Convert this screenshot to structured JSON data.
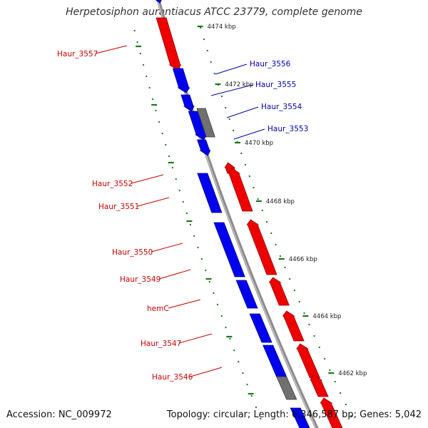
{
  "title": "Herpetosiphon aurantiacus ATCC 23779, complete genome",
  "footer": {
    "accession": "Accession: NC_009972",
    "summary": "Topology: circular; Length: 6,346,587 bp; Genes: 5,042"
  },
  "colors": {
    "forward_gene": "#ee0000",
    "reverse_gene": "#0000ee",
    "other_feature": "#707070",
    "backbone": "#8c8c8c",
    "ruler_ticks": "#1a7a1a",
    "forward_label": "#cc0000",
    "reverse_label": "#0000aa"
  },
  "ruler": {
    "unit": "kbp",
    "marks": [
      "4474 kbp",
      "4472 kbp",
      "4470 kbp",
      "4468 kbp",
      "4466 kbp",
      "4464 kbp",
      "4462 kbp"
    ]
  },
  "gene_labels": [
    {
      "name": "Haur_3557",
      "strand": "forward"
    },
    {
      "name": "Haur_3556",
      "strand": "reverse"
    },
    {
      "name": "Haur_3555",
      "strand": "reverse"
    },
    {
      "name": "Haur_3554",
      "strand": "reverse"
    },
    {
      "name": "Haur_3553",
      "strand": "reverse"
    },
    {
      "name": "Haur_3552",
      "strand": "forward"
    },
    {
      "name": "Haur_3551",
      "strand": "forward"
    },
    {
      "name": "Haur_3550",
      "strand": "forward"
    },
    {
      "name": "Haur_3549",
      "strand": "forward"
    },
    {
      "name": "hemC",
      "strand": "forward"
    },
    {
      "name": "Haur_3547",
      "strand": "forward"
    },
    {
      "name": "Haur_3546",
      "strand": "forward"
    }
  ]
}
